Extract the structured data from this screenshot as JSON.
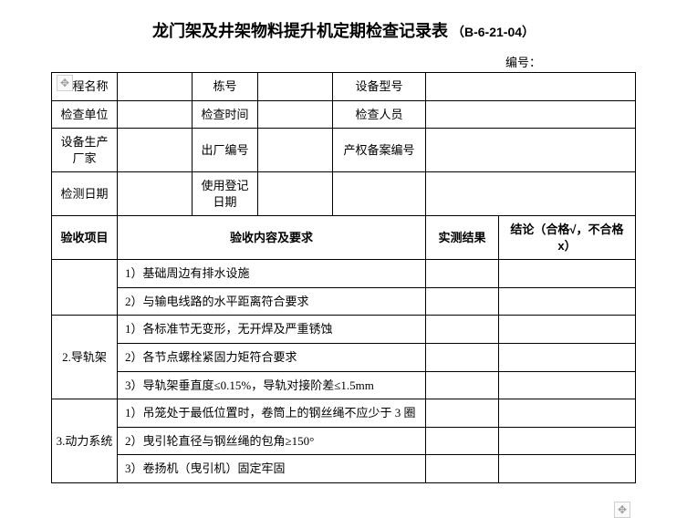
{
  "title": {
    "main": "龙门架及井架物料提升机定期检查记录表",
    "code": "（B-6-21-04）"
  },
  "serial_label": "编号：",
  "info_rows": [
    {
      "c1": "工程名称",
      "c3": "栋号",
      "c5": "设备型号"
    },
    {
      "c1": "检查单位",
      "c3": "检查时间",
      "c5": "检查人员"
    },
    {
      "c1": "设备生产厂家",
      "c3": "出厂编号",
      "c5": "产权备案编号"
    },
    {
      "c1": "检测日期",
      "c3": "使用登记日期",
      "c5": ""
    }
  ],
  "header": {
    "item": "验收项目",
    "content": "验收内容及要求",
    "result": "实测结果",
    "conclusion": "结论（合格√，不合格 x）"
  },
  "sections": [
    {
      "name": "",
      "rows": [
        "1）基础周边有排水设施",
        "2）与输电线路的水平距离符合要求"
      ]
    },
    {
      "name": "2.导轨架",
      "rows": [
        "1）各标准节无变形，无开焊及严重锈蚀",
        "2）各节点螺栓紧固力矩符合要求",
        "3）导轨架垂直度≤0.15%，导轨对接阶差≤1.5mm"
      ]
    },
    {
      "name": "3.动力系统",
      "rows": [
        "1）吊笼处于最低位置时，卷筒上的钢丝绳不应少于 3 圈",
        "2）曳引轮直径与钢丝绳的包角≥150°",
        "3）卷扬机（曳引机）固定牢固"
      ]
    }
  ]
}
